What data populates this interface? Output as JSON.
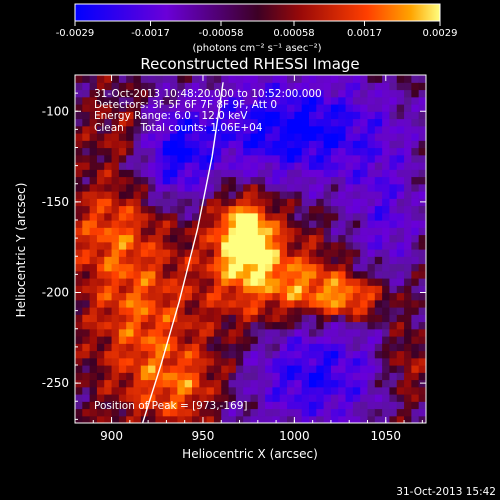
{
  "chart_data": {
    "type": "heatmap",
    "title": "Reconstructed RHESSI Image",
    "colorbar": {
      "ticks": [
        "-0.0029",
        "-0.0017",
        "-0.00058",
        "0.00058",
        "0.0017",
        "0.0029"
      ],
      "units": "(photons cm⁻² s⁻¹ asec⁻²)",
      "range": [
        -0.0029,
        0.0029
      ],
      "colors": [
        "#0000ff",
        "#6a00d8",
        "#3d0025",
        "#9a0a08",
        "#ff3f00",
        "#ffa400",
        "#ffff80"
      ]
    },
    "xlabel": "Heliocentric X (arcsec)",
    "ylabel": "Heliocentric Y (arcsec)",
    "xlim": [
      880,
      1072
    ],
    "ylim": [
      -272,
      -80
    ],
    "xticks": [
      900,
      950,
      1000,
      1050
    ],
    "yticks": [
      -100,
      -150,
      -200,
      -250
    ],
    "annotations": [
      "31-Oct-2013 10:48:20.000 to 10:52:00.000",
      "Detectors: 3F 5F 6F 7F 8F 9F, Att 0",
      "Energy Range: 6.0 - 12.0 keV",
      "Clean     Total counts: 1.06E+04"
    ],
    "peak_label": "Position of Peak = [973,-169]",
    "peak": [
      973,
      -169
    ],
    "limb_curve": [
      [
        961,
        -84
      ],
      [
        955,
        -125
      ],
      [
        947,
        -165
      ],
      [
        937,
        -205
      ],
      [
        927,
        -240
      ],
      [
        917,
        -272
      ]
    ]
  },
  "footer": {
    "timestamp": "31-Oct-2013 15:42"
  }
}
